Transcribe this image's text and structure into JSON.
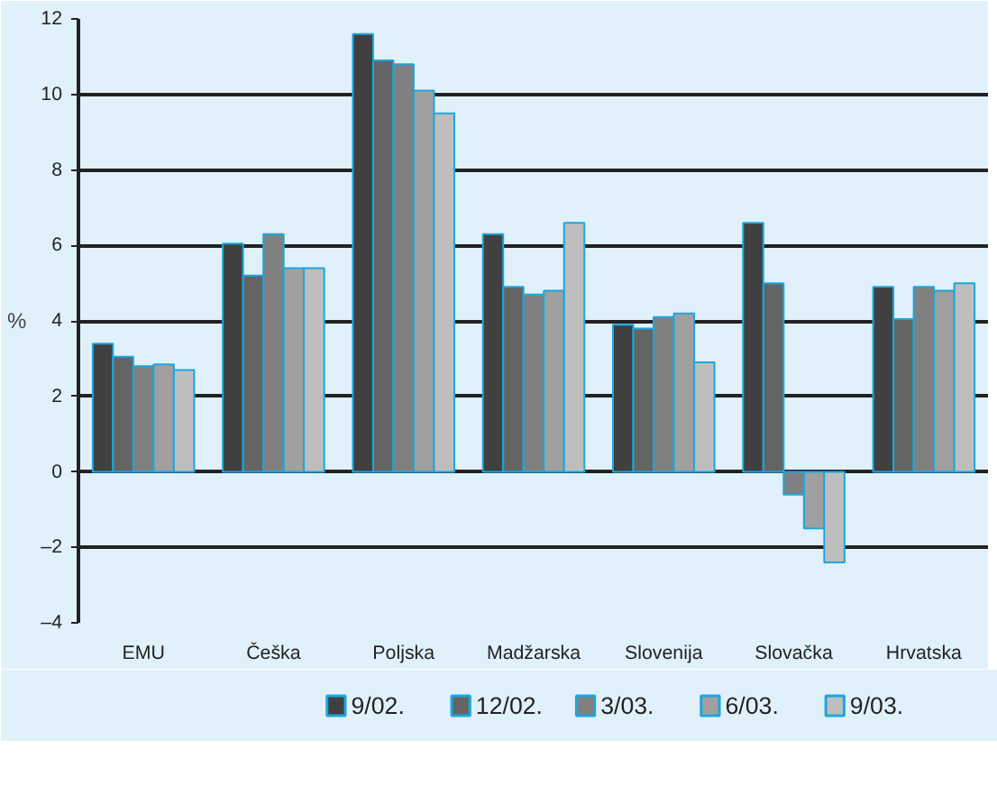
{
  "chart_data": {
    "type": "bar",
    "ylabel": "%",
    "categories": [
      "EMU",
      "Češka",
      "Poljska",
      "Madžarska",
      "Slovenija",
      "Slovačka",
      "Hrvatska"
    ],
    "series": [
      {
        "name": "9/02.",
        "color": "#404040",
        "values": [
          3.4,
          6.05,
          11.6,
          6.3,
          3.9,
          6.6,
          4.9
        ]
      },
      {
        "name": "12/02.",
        "color": "#646464",
        "values": [
          3.05,
          5.2,
          10.9,
          4.9,
          3.8,
          5.0,
          4.05
        ]
      },
      {
        "name": "3/03.",
        "color": "#808080",
        "values": [
          2.8,
          6.3,
          10.8,
          4.7,
          4.1,
          -0.6,
          4.9
        ]
      },
      {
        "name": "6/03.",
        "color": "#a0a0a0",
        "values": [
          2.85,
          5.4,
          10.1,
          4.8,
          4.2,
          -1.5,
          4.8
        ]
      },
      {
        "name": "9/03.",
        "color": "#bebebe",
        "values": [
          2.7,
          5.4,
          9.5,
          6.6,
          2.9,
          -2.4,
          5.0
        ]
      }
    ],
    "ylim": [
      -4,
      12
    ],
    "yticks": [
      {
        "value": -4,
        "label": "–4"
      },
      {
        "value": -2,
        "label": "–2"
      },
      0,
      2,
      4,
      6,
      8,
      10,
      12
    ],
    "grid": "y",
    "legend": "bottom"
  }
}
